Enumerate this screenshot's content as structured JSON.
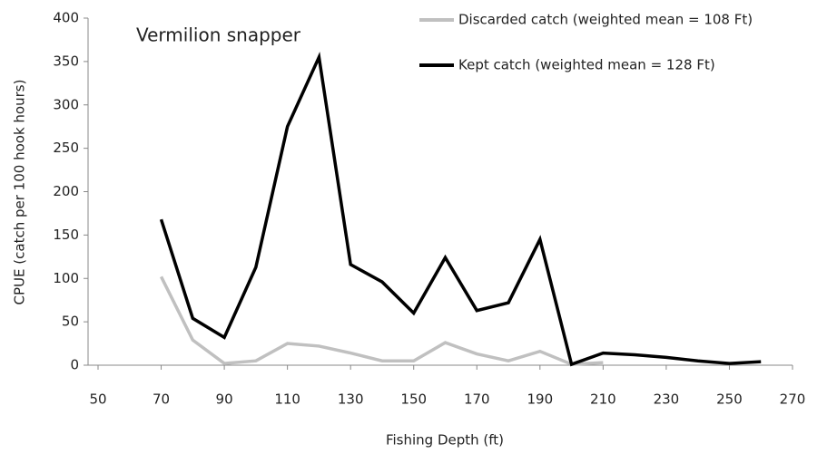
{
  "chart_data": {
    "type": "line",
    "annotation": "Vermilion snapper",
    "x_label": "Fishing Depth (ft)",
    "y_label": "CPUE (catch per 100 hook hours)",
    "x": [
      70,
      80,
      90,
      100,
      110,
      120,
      130,
      140,
      150,
      160,
      170,
      180,
      190,
      200,
      210,
      220,
      230,
      240,
      250,
      260
    ],
    "series": [
      {
        "name": "Discarded catch (weighted mean = 108 Ft)",
        "color": "#c0c0c0",
        "values": [
          102,
          29,
          2,
          5,
          25,
          22,
          14,
          5,
          5,
          26,
          13,
          5,
          16,
          1,
          3,
          null,
          null,
          null,
          null,
          null
        ]
      },
      {
        "name": "Kept catch (weighted mean = 128 Ft)",
        "color": "#000000",
        "values": [
          168,
          54,
          32,
          113,
          275,
          355,
          116,
          96,
          60,
          124,
          63,
          72,
          145,
          1,
          14,
          12,
          9,
          5,
          2,
          4
        ]
      }
    ],
    "xlim": [
      50,
      270
    ],
    "xticks": [
      50,
      70,
      90,
      110,
      130,
      150,
      170,
      190,
      210,
      230,
      250,
      270
    ],
    "ylim": [
      0,
      400
    ],
    "yticks": [
      0,
      50,
      100,
      150,
      200,
      250,
      300,
      350,
      400
    ],
    "grid": false,
    "legend": "top-right"
  }
}
